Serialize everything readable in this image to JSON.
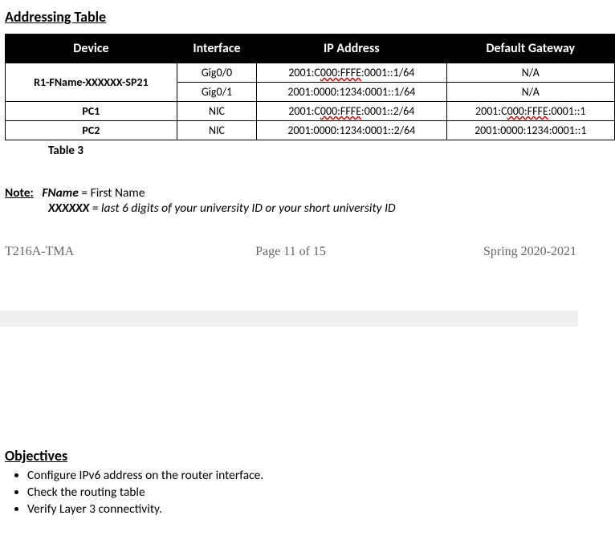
{
  "heading": "Addressing Table",
  "table": {
    "headers": [
      "Device",
      "Interface",
      "IP Address",
      "Default Gateway"
    ],
    "rows": [
      {
        "device": "R1-FName-XXXXXX-SP21",
        "rowspan": 2,
        "interface": "Gig0/0",
        "ip_pre": "2001:C",
        "ip_sq": "000:FFFE",
        "ip_post": ":0001::1/64",
        "gw_pre": "N/A",
        "gw_sq": "",
        "gw_post": ""
      },
      {
        "device": "",
        "rowspan": 0,
        "interface": "Gig0/1",
        "ip_pre": "2001:0000:1234:0001::1/64",
        "ip_sq": "",
        "ip_post": "",
        "gw_pre": "N/A",
        "gw_sq": "",
        "gw_post": ""
      },
      {
        "device": "PC1",
        "rowspan": 1,
        "interface": "NIC",
        "ip_pre": "2001:C",
        "ip_sq": "000:FFFE",
        "ip_post": ":0001::2/64",
        "gw_pre": "2001:C",
        "gw_sq": "000:FFFE",
        "gw_post": ":0001::1"
      },
      {
        "device": "PC2",
        "rowspan": 1,
        "interface": "NIC",
        "ip_pre": "2001:0000:1234:0001::2/64",
        "ip_sq": "",
        "ip_post": "",
        "gw_pre": "2001:0000:1234:0001::1",
        "gw_sq": "",
        "gw_post": ""
      }
    ],
    "caption": "Table 3"
  },
  "note": {
    "label": "Note:",
    "fname_bold": "FName",
    "fname_rest": " = First Name",
    "xxxxxx_bold": "XXXXXX",
    "xxxxxx_rest": " = last 6 digits of your university ID or your short university ID"
  },
  "footer": {
    "left": "T216A-TMA",
    "mid": "Page 11 of 15",
    "right": "Spring 2020-2021"
  },
  "objectives": {
    "heading": "Objectives",
    "items": [
      "Configure IPv6 address on the router interface.",
      "Check the routing table",
      "Verify Layer 3 connectivity."
    ]
  }
}
